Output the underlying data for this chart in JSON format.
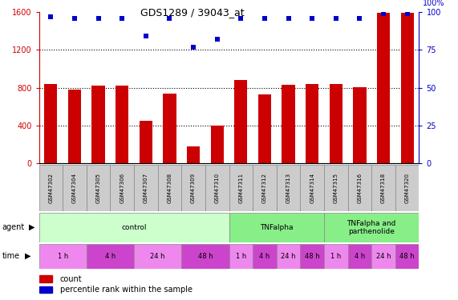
{
  "title": "GDS1289 / 39043_at",
  "samples": [
    "GSM47302",
    "GSM47304",
    "GSM47305",
    "GSM47306",
    "GSM47307",
    "GSM47308",
    "GSM47309",
    "GSM47310",
    "GSM47311",
    "GSM47312",
    "GSM47313",
    "GSM47314",
    "GSM47315",
    "GSM47316",
    "GSM47318",
    "GSM47320"
  ],
  "counts": [
    840,
    780,
    820,
    820,
    450,
    740,
    180,
    400,
    880,
    730,
    830,
    840,
    840,
    810,
    1590,
    1590
  ],
  "percentile_ranks": [
    97,
    96,
    96,
    96,
    84,
    96,
    77,
    82,
    96,
    96,
    96,
    96,
    96,
    96,
    99,
    99
  ],
  "bar_color": "#cc0000",
  "dot_color": "#0000cc",
  "bg_color": "#ffffff",
  "left_axis_color": "#cc0000",
  "right_axis_color": "#0000cc",
  "yticks_left": [
    0,
    400,
    800,
    1200,
    1600
  ],
  "yticks_right": [
    0,
    25,
    50,
    75,
    100
  ],
  "ylim_left": [
    0,
    1600
  ],
  "ylim_right": [
    0,
    100
  ],
  "agents": [
    {
      "label": "control",
      "start": 0,
      "end": 8,
      "color": "#ccffcc"
    },
    {
      "label": "TNFalpha",
      "start": 8,
      "end": 12,
      "color": "#88ee88"
    },
    {
      "label": "TNFalpha and\nparthenolide",
      "start": 12,
      "end": 16,
      "color": "#88ee88"
    }
  ],
  "time_groups": [
    {
      "label": "1 h",
      "start": 0,
      "end": 2,
      "color": "#ee88ee"
    },
    {
      "label": "4 h",
      "start": 2,
      "end": 4,
      "color": "#cc44cc"
    },
    {
      "label": "24 h",
      "start": 4,
      "end": 6,
      "color": "#ee88ee"
    },
    {
      "label": "48 h",
      "start": 6,
      "end": 8,
      "color": "#cc44cc"
    },
    {
      "label": "1 h",
      "start": 8,
      "end": 9,
      "color": "#ee88ee"
    },
    {
      "label": "4 h",
      "start": 9,
      "end": 10,
      "color": "#cc44cc"
    },
    {
      "label": "24 h",
      "start": 10,
      "end": 11,
      "color": "#ee88ee"
    },
    {
      "label": "48 h",
      "start": 11,
      "end": 12,
      "color": "#cc44cc"
    },
    {
      "label": "1 h",
      "start": 12,
      "end": 13,
      "color": "#ee88ee"
    },
    {
      "label": "4 h",
      "start": 13,
      "end": 14,
      "color": "#cc44cc"
    },
    {
      "label": "24 h",
      "start": 14,
      "end": 15,
      "color": "#ee88ee"
    },
    {
      "label": "48 h",
      "start": 15,
      "end": 16,
      "color": "#cc44cc"
    }
  ],
  "sample_bg_color": "#cccccc",
  "legend_count_color": "#cc0000",
  "legend_dot_color": "#0000cc",
  "bar_width": 0.55,
  "dot_size": 20
}
